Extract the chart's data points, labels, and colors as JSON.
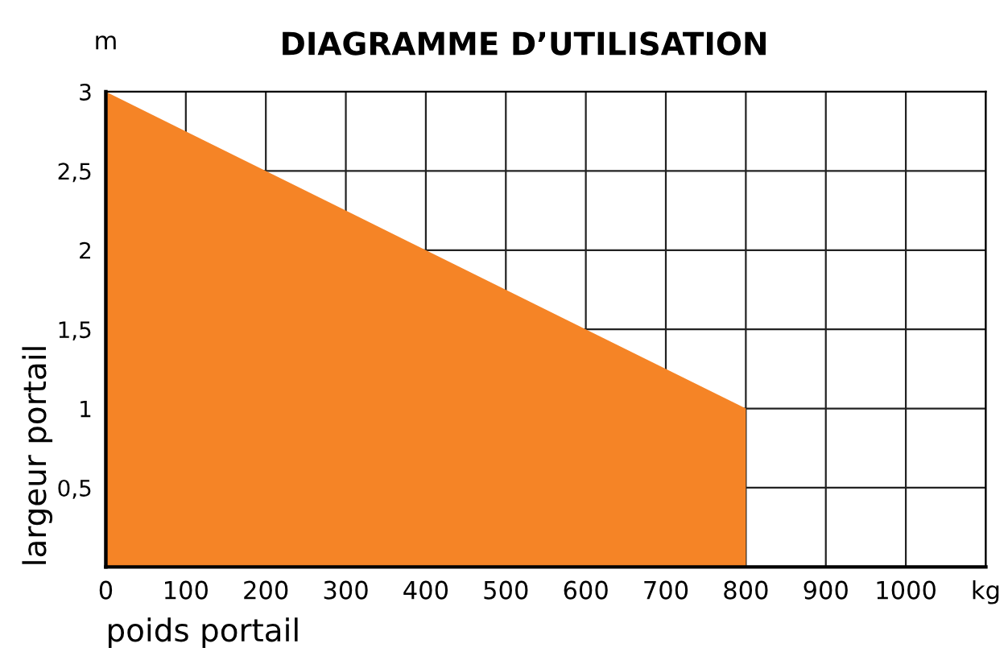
{
  "chart_data": {
    "type": "area",
    "title": "DIAGRAMME D’UTILISATION",
    "xlabel": "poids portail",
    "ylabel": "largeur portail",
    "annotations": [
      "m"
    ],
    "x": [
      0,
      800
    ],
    "series": [
      {
        "color": "#f58426",
        "values": [
          3,
          1
        ]
      }
    ],
    "xlim": [
      0,
      1100
    ],
    "ylim": [
      0,
      3
    ],
    "xticks": [
      0,
      100,
      200,
      300,
      400,
      500,
      600,
      700,
      800,
      900,
      1000,
      {
        "value": 1100,
        "label": "kg"
      }
    ],
    "yticks": [
      {
        "value": 0.5,
        "label": "0,5"
      },
      1,
      {
        "value": 1.5,
        "label": "1,5"
      },
      2,
      {
        "value": 2.5,
        "label": "2,5"
      },
      3
    ],
    "grid": true
  }
}
